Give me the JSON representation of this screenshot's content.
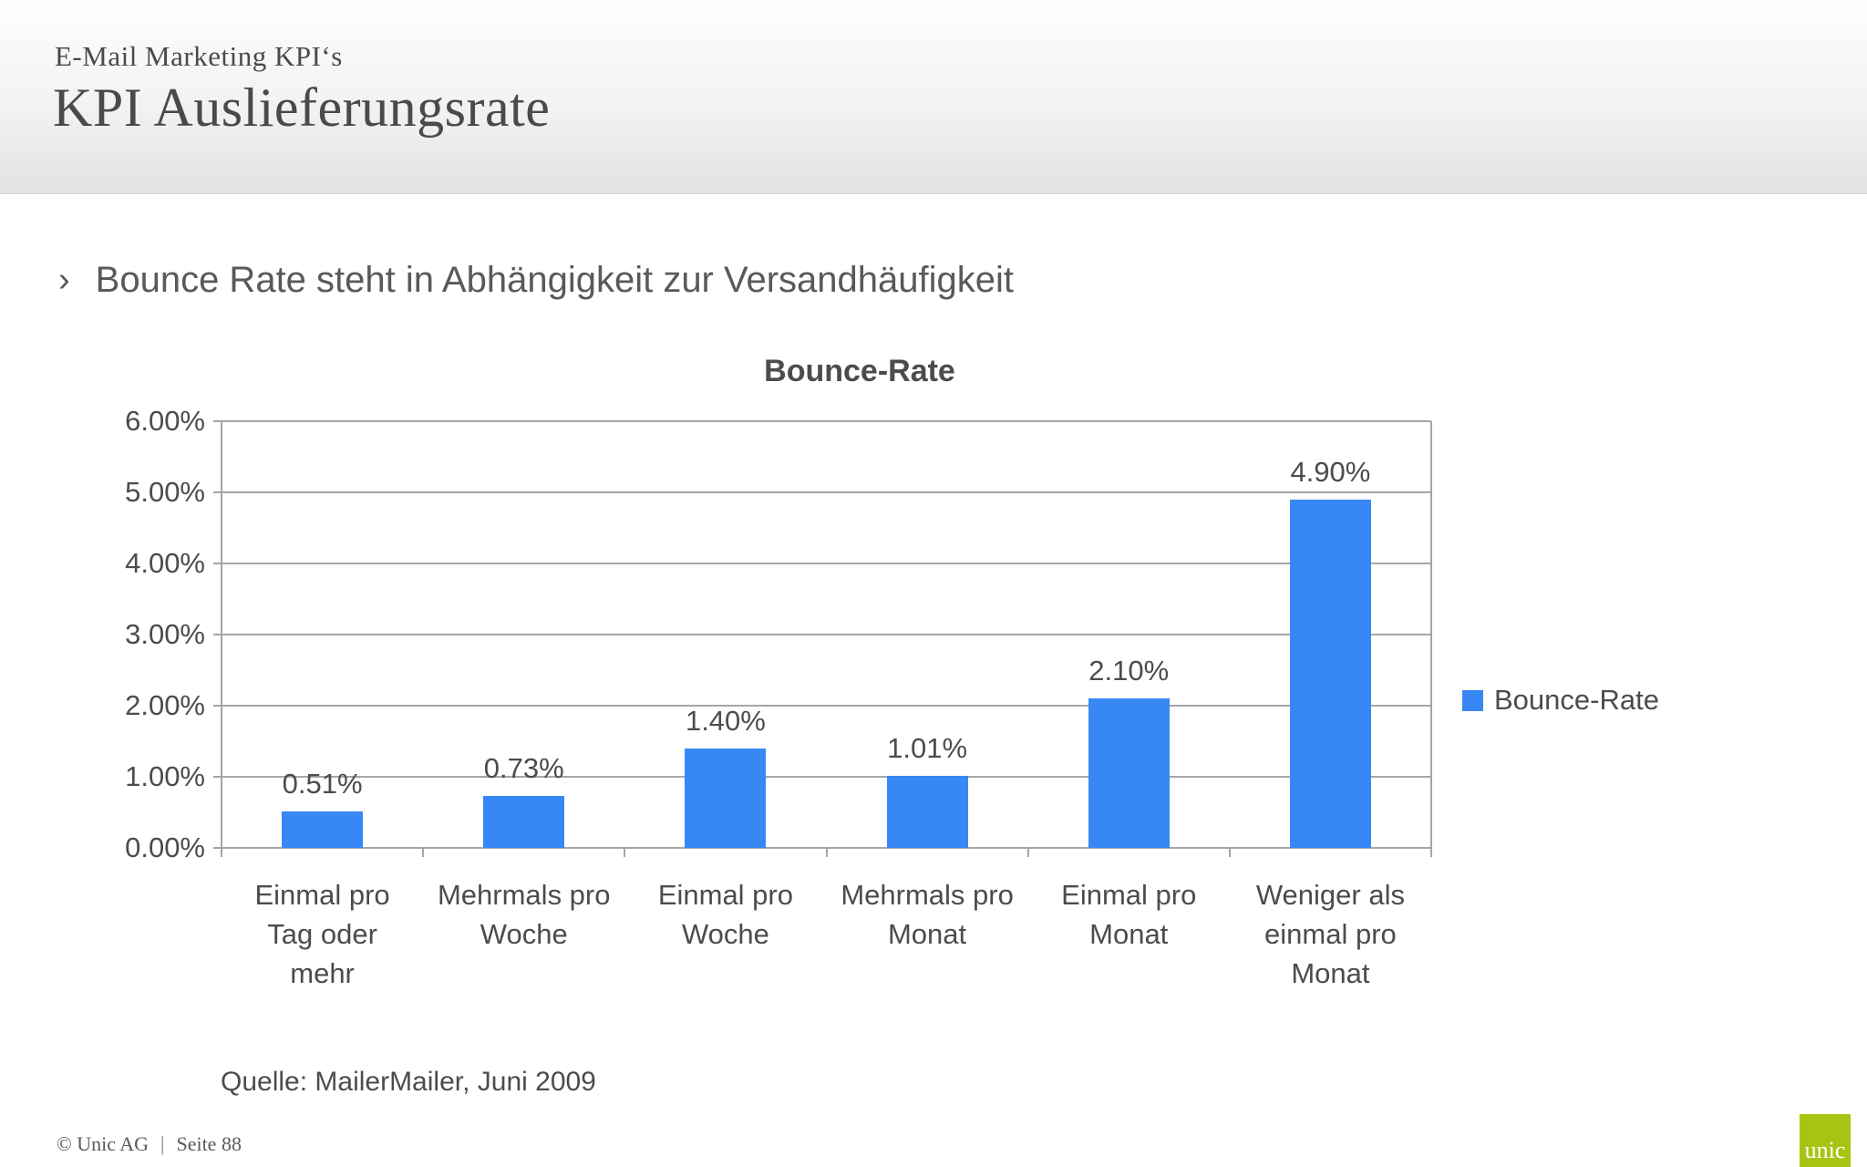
{
  "header": {
    "kicker": "E-Mail Marketing KPI‘s",
    "title": "KPI Auslieferungsrate"
  },
  "bullet": {
    "marker": "›",
    "text": "Bounce Rate steht in Abhängigkeit zur Versandhäufigkeit"
  },
  "chart_data": {
    "type": "bar",
    "title": "Bounce-Rate",
    "categories": [
      "Einmal pro Tag oder mehr",
      "Mehrmals pro Woche",
      "Einmal pro Woche",
      "Mehrmals pro Monat",
      "Einmal pro Monat",
      "Weniger als einmal pro Monat"
    ],
    "category_lines": [
      "Einmal pro\nTag oder\nmehr",
      "Mehrmals pro\nWoche",
      "Einmal pro\nWoche",
      "Mehrmals pro\nMonat",
      "Einmal pro\nMonat",
      "Weniger als\neinmal pro\nMonat"
    ],
    "values": [
      0.51,
      0.73,
      1.4,
      1.01,
      2.1,
      4.9
    ],
    "value_labels": [
      "0.51%",
      "0.73%",
      "1.40%",
      "1.01%",
      "2.10%",
      "4.90%"
    ],
    "ytick_labels": [
      "0.00%",
      "1.00%",
      "2.00%",
      "3.00%",
      "4.00%",
      "5.00%",
      "6.00%"
    ],
    "ylim": [
      0,
      6
    ],
    "grid": true,
    "xlabel": "",
    "ylabel": "",
    "legend": {
      "label": "Bounce-Rate",
      "position": "right"
    },
    "bar_color": "#3788f5"
  },
  "source": {
    "text": "Quelle: MailerMailer, Juni 2009"
  },
  "footer": {
    "copyright_left": "© Unic AG",
    "separator": "|",
    "page": "Seite 88",
    "logo_text": "unic",
    "logo_color": "#a6c513"
  }
}
